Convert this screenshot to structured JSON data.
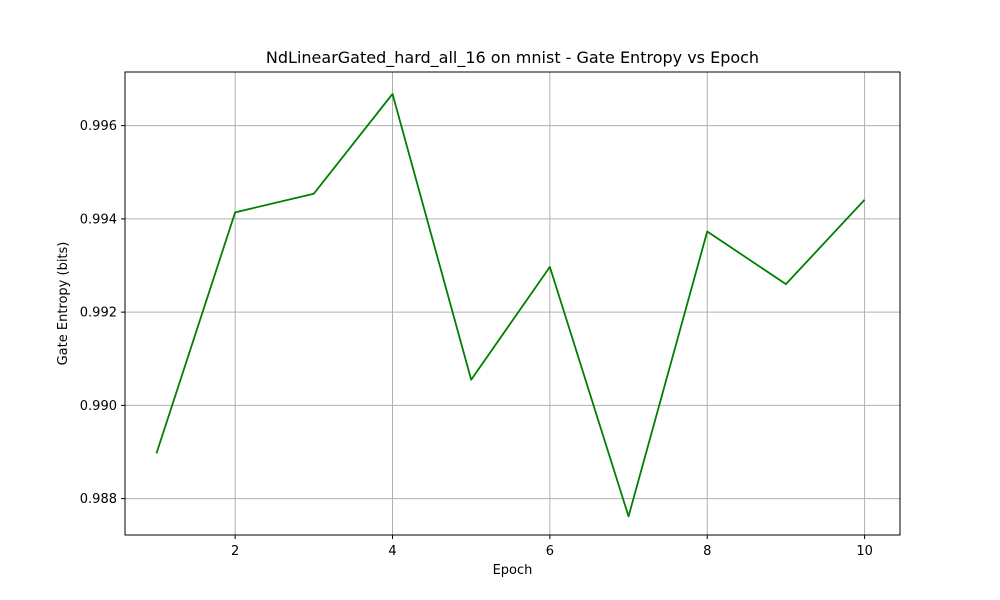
{
  "chart_data": {
    "type": "line",
    "title": "NdLinearGated_hard_all_16 on mnist - Gate Entropy vs Epoch",
    "xlabel": "Epoch",
    "ylabel": "Gate Entropy (bits)",
    "xlim": [
      0.6,
      10.45
    ],
    "ylim": [
      0.98722,
      0.99715
    ],
    "xticks": [
      2,
      4,
      6,
      8,
      10
    ],
    "yticks": [
      0.988,
      0.99,
      0.992,
      0.994,
      0.996
    ],
    "xtick_labels": [
      "2",
      "4",
      "6",
      "8",
      "10"
    ],
    "ytick_labels": [
      "0.988",
      "0.990",
      "0.992",
      "0.994",
      "0.996"
    ],
    "grid": true,
    "series": [
      {
        "color": "#008000",
        "x": [
          1,
          2,
          3,
          4,
          5,
          6,
          7,
          8,
          9,
          10
        ],
        "y": [
          0.98897,
          0.99414,
          0.99454,
          0.99668,
          0.99055,
          0.99297,
          0.98762,
          0.99373,
          0.9926,
          0.99441
        ]
      }
    ]
  }
}
